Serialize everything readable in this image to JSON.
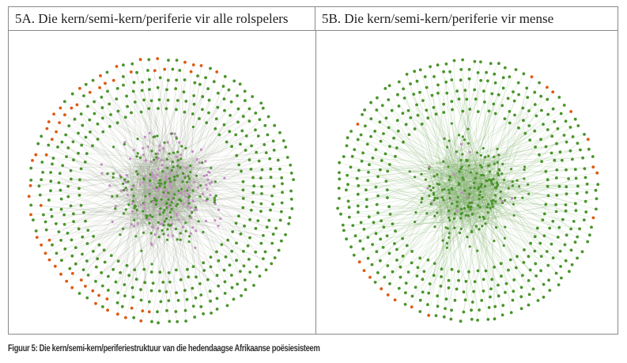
{
  "panels": [
    {
      "title": "5A. Die kern/semi-kern/periferie vir alle rolspelers"
    },
    {
      "title": "5B. Die kern/semi-kern/periferie vir mense"
    }
  ],
  "caption": "Figuur 5: Die kern/semi-kern/periferiestruktuur van die hedendaagse Afrikaanse poësiesisteem"
}
